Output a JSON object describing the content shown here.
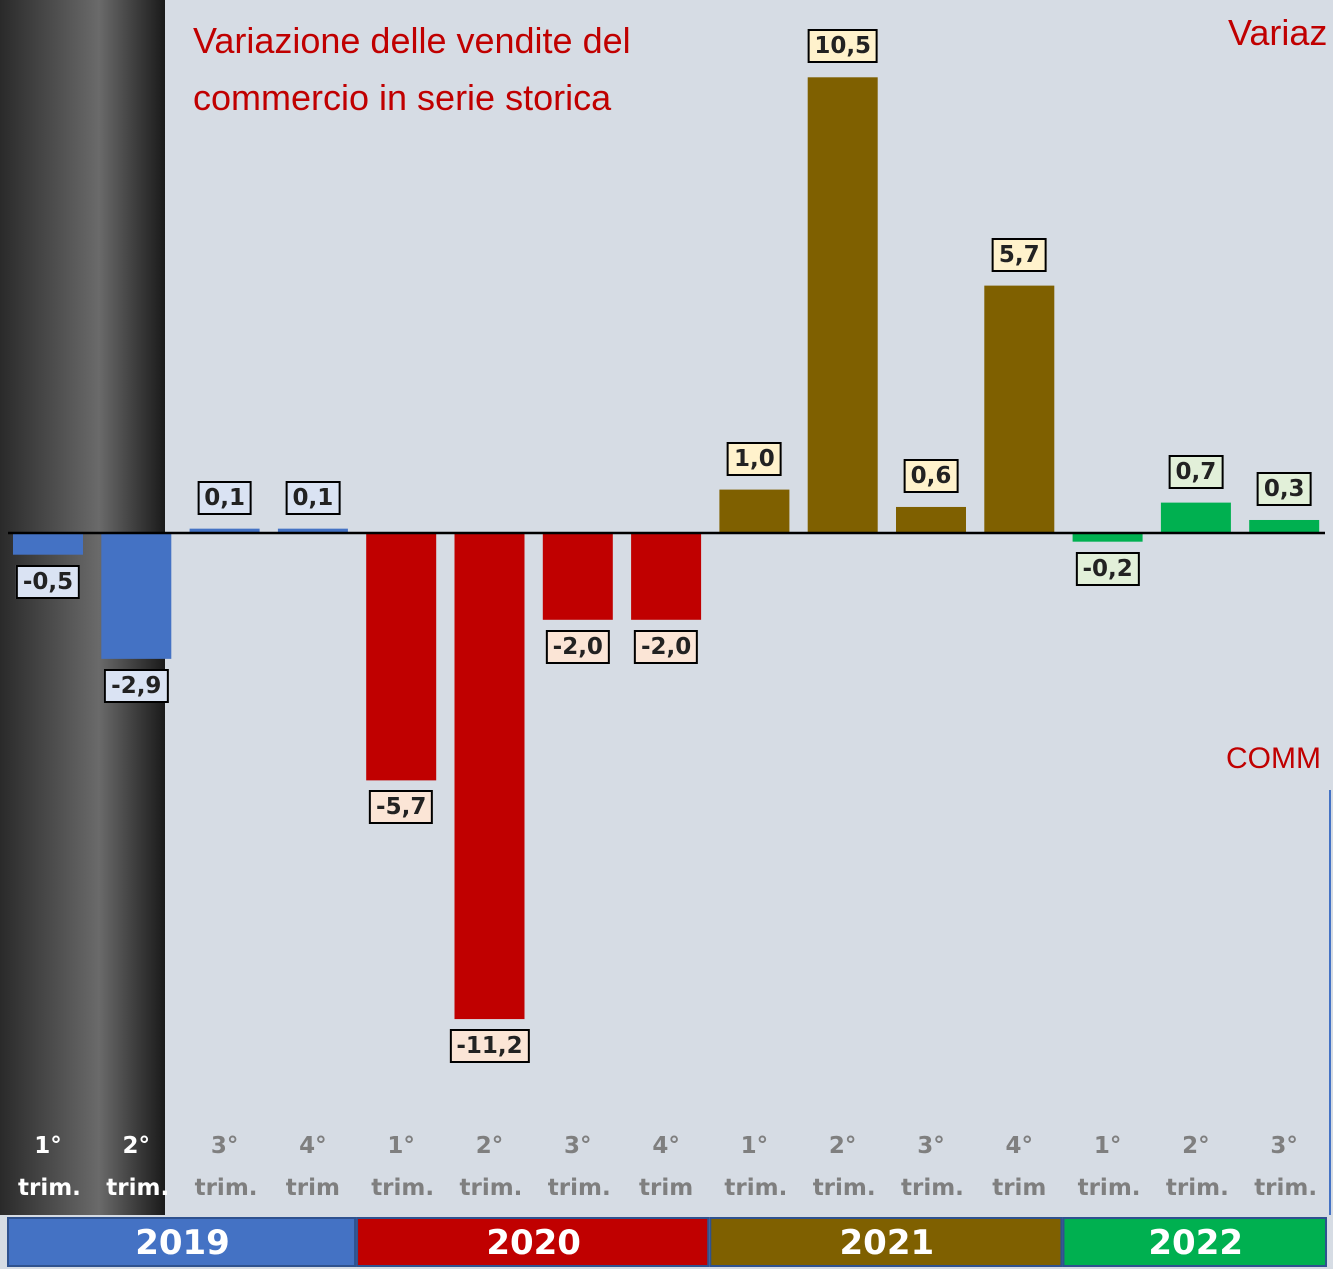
{
  "chart_data": {
    "type": "bar",
    "title": "Variazione delle vendite del commercio in serie storica",
    "annotations": [
      "Variaz",
      "COMM"
    ],
    "categories": [
      "1° trim.",
      "2° trim.",
      "3° trim.",
      "4° trim",
      "1° trim.",
      "2° trim.",
      "3° trim.",
      "4° trim",
      "1° trim.",
      "2° trim.",
      "3° trim.",
      "4° trim",
      "1° trim.",
      "2° trim.",
      "3° trim."
    ],
    "series": [
      {
        "name": "2019",
        "color": "#4472c4",
        "label_color": "#dae3f3",
        "values": [
          -0.5,
          -2.9,
          0.1,
          0.1,
          null,
          null,
          null,
          null,
          null,
          null,
          null,
          null,
          null,
          null,
          null
        ],
        "value_labels": [
          "-0,5",
          "-2,9",
          "0,1",
          "0,1",
          null,
          null,
          null,
          null,
          null,
          null,
          null,
          null,
          null,
          null,
          null
        ]
      },
      {
        "name": "2020",
        "color": "#c00000",
        "label_color": "#fbe5d6",
        "values": [
          null,
          null,
          null,
          null,
          -5.7,
          -11.2,
          -2.0,
          -2.0,
          null,
          null,
          null,
          null,
          null,
          null,
          null
        ],
        "value_labels": [
          null,
          null,
          null,
          null,
          "-5,7",
          "-11,2",
          "-2,0",
          "-2,0",
          null,
          null,
          null,
          null,
          null,
          null,
          null
        ]
      },
      {
        "name": "2021",
        "color": "#7f6000",
        "label_color": "#fff2cc",
        "values": [
          null,
          null,
          null,
          null,
          null,
          null,
          null,
          null,
          1.0,
          10.5,
          0.6,
          5.7,
          null,
          null,
          null
        ],
        "value_labels": [
          null,
          null,
          null,
          null,
          null,
          null,
          null,
          null,
          "1,0",
          "10,5",
          "0,6",
          "5,7",
          null,
          null,
          null
        ]
      },
      {
        "name": "2022",
        "color": "#00b050",
        "label_color": "#e2f0d9",
        "values": [
          null,
          null,
          null,
          null,
          null,
          null,
          null,
          null,
          null,
          null,
          null,
          null,
          -0.2,
          0.7,
          0.3
        ],
        "value_labels": [
          null,
          null,
          null,
          null,
          null,
          null,
          null,
          null,
          null,
          null,
          null,
          null,
          "-0,2",
          "0,7",
          "0,3"
        ]
      }
    ]
  }
}
